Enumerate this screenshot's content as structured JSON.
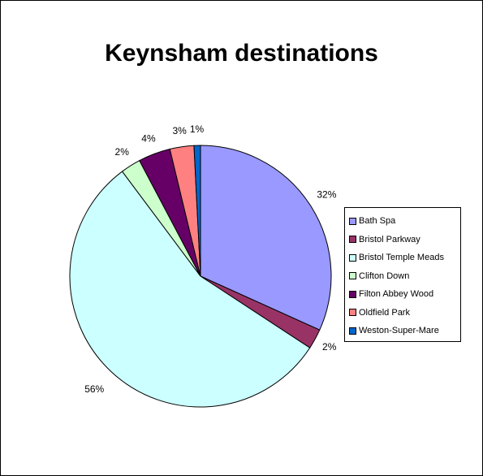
{
  "chart_data": {
    "type": "pie",
    "title": "Keynsham destinations",
    "slices": [
      {
        "name": "Bath Spa",
        "value": 32,
        "label": "32%",
        "color": "#9999ff"
      },
      {
        "name": "Bristol Parkway",
        "value": 2.5,
        "label": "2%",
        "color": "#993366"
      },
      {
        "name": "Bristol Temple Meads",
        "value": 56,
        "label": "56%",
        "color": "#ccffff"
      },
      {
        "name": "Clifton Down",
        "value": 2.5,
        "label": "2%",
        "color": "#ccffcc"
      },
      {
        "name": "Filton Abbey Wood",
        "value": 4,
        "label": "4%",
        "color": "#660066"
      },
      {
        "name": "Oldfield Park",
        "value": 3,
        "label": "3%",
        "color": "#ff8080"
      },
      {
        "name": "Weston-Super-Mare",
        "value": 0.8,
        "label": "1%",
        "color": "#0066cc"
      }
    ],
    "start_angle": "12 o'clock",
    "direction": "clockwise",
    "legend": "right"
  }
}
